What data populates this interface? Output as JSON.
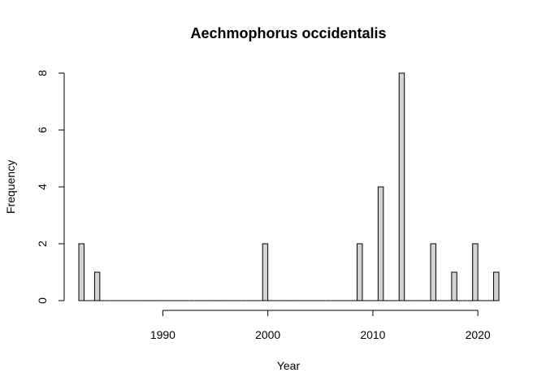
{
  "chart_data": {
    "type": "bar",
    "title": "Aechmophorus occidentalis",
    "xlabel": "Year",
    "ylabel": "Frequency",
    "bin_width": 0.5,
    "x": [
      1982,
      1982.5,
      1983,
      1983.5,
      1984,
      1984.5,
      1985,
      1985.5,
      1986,
      1986.5,
      1987,
      1987.5,
      1988,
      1988.5,
      1989,
      1989.5,
      1990,
      1990.5,
      1991,
      1991.5,
      1992,
      1992.5,
      1993,
      1993.5,
      1994,
      1994.5,
      1995,
      1995.5,
      1996,
      1996.5,
      1997,
      1997.5,
      1998,
      1998.5,
      1999,
      1999.5,
      2000,
      2000.5,
      2001,
      2001.5,
      2002,
      2002.5,
      2003,
      2003.5,
      2004,
      2004.5,
      2005,
      2005.5,
      2006,
      2006.5,
      2007,
      2007.5,
      2008,
      2008.5,
      2009,
      2009.5,
      2010,
      2010.5,
      2011,
      2011.5,
      2012,
      2012.5,
      2013,
      2013.5,
      2014,
      2014.5,
      2015,
      2015.5,
      2016,
      2016.5,
      2017,
      2017.5,
      2018,
      2018.5,
      2019,
      2019.5,
      2020,
      2020.5,
      2021,
      2021.5
    ],
    "values": [
      2,
      0,
      0,
      1,
      0,
      0,
      0,
      0,
      0,
      0,
      0,
      0,
      0,
      0,
      0,
      0,
      0,
      0,
      0,
      0,
      0,
      0,
      0,
      0,
      0,
      0,
      0,
      0,
      0,
      0,
      0,
      0,
      0,
      0,
      0,
      2,
      0,
      0,
      0,
      0,
      0,
      0,
      0,
      0,
      0,
      0,
      0,
      0,
      0,
      0,
      0,
      0,
      0,
      2,
      0,
      0,
      0,
      4,
      0,
      0,
      0,
      8,
      0,
      0,
      0,
      0,
      0,
      2,
      0,
      0,
      0,
      1,
      0,
      0,
      0,
      2,
      0,
      0,
      0,
      1
    ],
    "xticks": [
      1990,
      2000,
      2010,
      2020
    ],
    "xtick_labels": [
      "1990",
      "2000",
      "2010",
      "2020"
    ],
    "yticks": [
      0,
      2,
      4,
      6,
      8
    ],
    "ytick_labels": [
      "0",
      "2",
      "4",
      "6",
      "8"
    ],
    "xlim": [
      1982,
      2022
    ],
    "ylim": [
      0,
      8
    ],
    "grid": false,
    "colors": {
      "bar_fill": "#d3d3d3",
      "bar_stroke": "#000000"
    }
  }
}
